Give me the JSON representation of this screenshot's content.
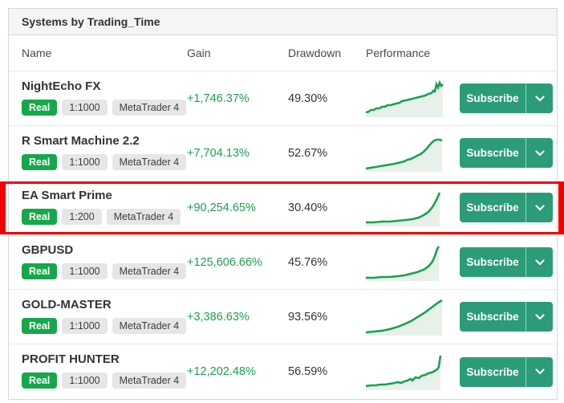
{
  "header": {
    "title": "Systems by Trading_Time"
  },
  "columns": {
    "name": "Name",
    "gain": "Gain",
    "drawdown": "Drawdown",
    "performance": "Performance"
  },
  "actions": {
    "subscribe": "Subscribe"
  },
  "colors": {
    "accent_green": "#17a74b",
    "button_green": "#2b9c77",
    "gain_green": "#1d9e50",
    "spark_green": "#1aa053",
    "highlight_red": "#f20000"
  },
  "highlight": {
    "highlighted_row": "EA Smart Prime"
  },
  "rows": [
    {
      "name": "NightEcho FX",
      "account_type": "Real",
      "leverage": "1:1000",
      "platform": "MetaTrader 4",
      "gain": "+1,746.37%",
      "drawdown": "49.30%",
      "sparkline": "0,40 4,39 6,37 10,37 13,35 17,35 20,33 24,33 27,31 31,31 34,30 38,29 42,28 45,26 50,25 54,24 58,23 62,22 66,21 70,20 74,19 78,17 82,16 84,13 86,14 88,5 90,9 92,3 94,7 96,5"
    },
    {
      "name": "R Smart Machine 2.2",
      "account_type": "Real",
      "leverage": "1:1000",
      "platform": "MetaTrader 4",
      "gain": "+7,704.13%",
      "drawdown": "52.67%",
      "sparkline": "0,42 6,41 12,40 18,39 24,38 30,37 36,36 40,35 44,34 48,33 52,31 56,30 60,28 64,26 68,24 72,21 76,17 80,12 84,8 88,6 92,6 95,7"
    },
    {
      "name": "EA Smart Prime",
      "account_type": "Real",
      "leverage": "1:200",
      "platform": "MetaTrader 4",
      "gain": "+90,254.65%",
      "drawdown": "30.40%",
      "sparkline": "0,41 10,41 20,40 30,40 40,39 50,38 58,37 66,35 72,32 78,28 83,22 88,13 92,4"
    },
    {
      "name": "GBPUSD",
      "account_type": "Real",
      "leverage": "1:1000",
      "platform": "MetaTrader 4",
      "gain": "+125,606.66%",
      "drawdown": "45.76%",
      "sparkline": "0,42 10,42 20,41 30,41 40,40 48,39 56,37 64,35 72,32 78,28 83,22 86,15 89,6 91,3"
    },
    {
      "name": "GOLD-MASTER",
      "account_type": "Real",
      "leverage": "1:1000",
      "platform": "MetaTrader 4",
      "gain": "+3,386.63%",
      "drawdown": "93.56%",
      "sparkline": "0,42 10,41 20,40 30,38 40,35 50,31 58,27 66,22 74,17 82,11 90,5 95,2"
    },
    {
      "name": "PROFIT HUNTER",
      "account_type": "Real",
      "leverage": "1:1000",
      "platform": "MetaTrader 4",
      "gain": "+12,202.48%",
      "drawdown": "56.59%",
      "sparkline": "0,41 6,40 12,40 18,39 24,39 30,38 36,37 40,36 44,37 48,35 52,34 56,32 58,34 62,30 66,31 70,28 74,27 78,25 82,24 86,22 89,20 91,17 93,3"
    }
  ]
}
